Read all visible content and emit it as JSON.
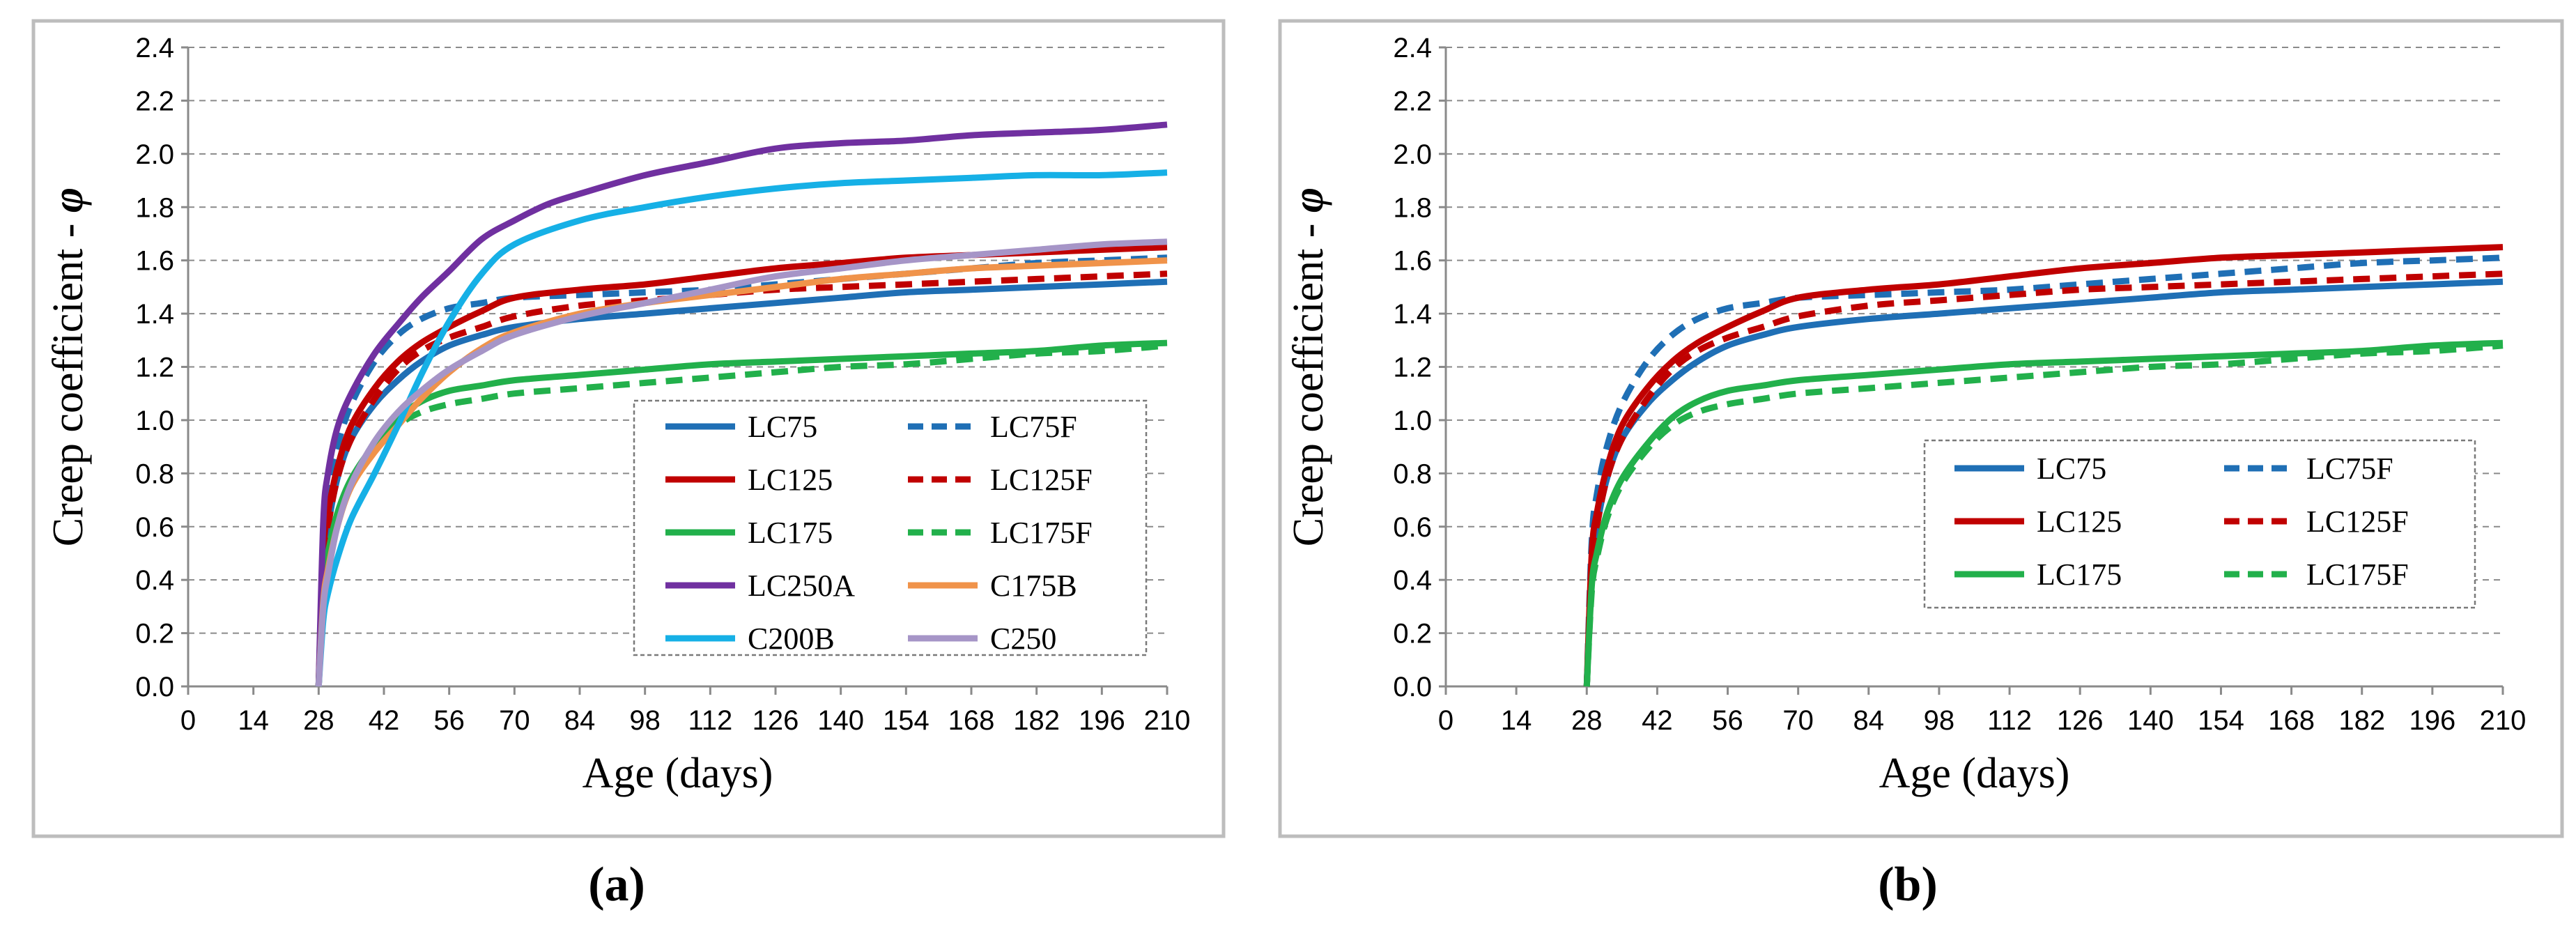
{
  "chart_data": [
    {
      "type": "line",
      "panel_label": "(a)",
      "title": "",
      "xlabel": "Age (days)",
      "ylabel": "Creep coefficient - ",
      "ylabel_symbol": "φ",
      "xlim": [
        0,
        210
      ],
      "ylim": [
        0,
        2.4
      ],
      "xticks": [
        "0",
        "14",
        "28",
        "42",
        "56",
        "70",
        "84",
        "98",
        "112",
        "126",
        "140",
        "154",
        "168",
        "182",
        "196",
        "210"
      ],
      "yticks": [
        "0.0",
        "0.2",
        "0.4",
        "0.6",
        "0.8",
        "1.0",
        "1.2",
        "1.4",
        "1.6",
        "1.8",
        "2.0",
        "2.2",
        "2.4"
      ],
      "grid": true,
      "legend_position": "bottom-right",
      "series": [
        {
          "name": "LC75",
          "color": "#1f6fb5",
          "dash": "solid",
          "x": [
            28,
            29,
            30,
            32,
            35,
            40,
            45,
            50,
            56,
            63,
            70,
            84,
            98,
            112,
            126,
            140,
            154,
            168,
            182,
            196,
            210
          ],
          "y": [
            0,
            0.45,
            0.6,
            0.78,
            0.93,
            1.06,
            1.15,
            1.22,
            1.28,
            1.32,
            1.35,
            1.38,
            1.4,
            1.42,
            1.44,
            1.46,
            1.48,
            1.49,
            1.5,
            1.51,
            1.52
          ]
        },
        {
          "name": "LC75F",
          "color": "#1f6fb5",
          "dash": "dashed",
          "x": [
            28,
            29,
            30,
            32,
            35,
            40,
            45,
            50,
            56,
            63,
            70,
            84,
            98,
            112,
            126,
            140,
            154,
            168,
            182,
            196,
            210
          ],
          "y": [
            0,
            0.55,
            0.72,
            0.9,
            1.06,
            1.22,
            1.32,
            1.38,
            1.42,
            1.44,
            1.46,
            1.47,
            1.48,
            1.49,
            1.51,
            1.53,
            1.55,
            1.57,
            1.59,
            1.6,
            1.61
          ]
        },
        {
          "name": "LC125",
          "color": "#c00000",
          "dash": "solid",
          "x": [
            28,
            29,
            30,
            32,
            35,
            40,
            45,
            50,
            56,
            63,
            70,
            84,
            98,
            112,
            126,
            140,
            154,
            168,
            182,
            196,
            210
          ],
          "y": [
            0,
            0.5,
            0.65,
            0.82,
            0.98,
            1.12,
            1.22,
            1.29,
            1.35,
            1.41,
            1.46,
            1.49,
            1.51,
            1.54,
            1.57,
            1.59,
            1.61,
            1.62,
            1.63,
            1.64,
            1.65
          ]
        },
        {
          "name": "LC125F",
          "color": "#c00000",
          "dash": "dashed",
          "x": [
            28,
            29,
            30,
            32,
            35,
            40,
            45,
            50,
            56,
            63,
            70,
            84,
            98,
            112,
            126,
            140,
            154,
            168,
            182,
            196,
            210
          ],
          "y": [
            0,
            0.45,
            0.6,
            0.78,
            0.93,
            1.08,
            1.19,
            1.26,
            1.31,
            1.35,
            1.39,
            1.43,
            1.45,
            1.47,
            1.49,
            1.5,
            1.51,
            1.52,
            1.53,
            1.54,
            1.55
          ]
        },
        {
          "name": "LC175",
          "color": "#22b04b",
          "dash": "solid",
          "x": [
            28,
            29,
            30,
            32,
            35,
            40,
            45,
            50,
            56,
            63,
            70,
            84,
            98,
            112,
            126,
            140,
            154,
            168,
            182,
            196,
            210
          ],
          "y": [
            0,
            0.38,
            0.5,
            0.65,
            0.78,
            0.91,
            1.01,
            1.07,
            1.11,
            1.13,
            1.15,
            1.17,
            1.19,
            1.21,
            1.22,
            1.23,
            1.24,
            1.25,
            1.26,
            1.28,
            1.29
          ]
        },
        {
          "name": "LC175F",
          "color": "#22b04b",
          "dash": "dashed",
          "x": [
            28,
            29,
            30,
            32,
            35,
            40,
            45,
            50,
            56,
            63,
            70,
            84,
            98,
            112,
            126,
            140,
            154,
            168,
            182,
            196,
            210
          ],
          "y": [
            0,
            0.36,
            0.48,
            0.63,
            0.76,
            0.89,
            0.98,
            1.03,
            1.06,
            1.08,
            1.1,
            1.12,
            1.14,
            1.16,
            1.18,
            1.2,
            1.21,
            1.23,
            1.25,
            1.26,
            1.28
          ]
        },
        {
          "name": "LC250A",
          "color": "#7030a0",
          "dash": "solid",
          "x": [
            28,
            29,
            30,
            32,
            35,
            40,
            45,
            50,
            56,
            63,
            70,
            77,
            84,
            98,
            112,
            126,
            140,
            154,
            168,
            182,
            196,
            210
          ],
          "y": [
            0,
            0.62,
            0.8,
            0.97,
            1.1,
            1.25,
            1.36,
            1.46,
            1.56,
            1.68,
            1.75,
            1.81,
            1.85,
            1.92,
            1.97,
            2.02,
            2.04,
            2.05,
            2.07,
            2.08,
            2.09,
            2.11
          ]
        },
        {
          "name": "C175B",
          "color": "#f0934a",
          "dash": "solid",
          "x": [
            28,
            29,
            30,
            32,
            35,
            40,
            45,
            50,
            56,
            63,
            70,
            84,
            98,
            112,
            126,
            140,
            154,
            168,
            182,
            196,
            210
          ],
          "y": [
            0,
            0.32,
            0.44,
            0.6,
            0.75,
            0.88,
            0.98,
            1.08,
            1.18,
            1.27,
            1.33,
            1.4,
            1.44,
            1.47,
            1.5,
            1.53,
            1.55,
            1.57,
            1.58,
            1.59,
            1.6
          ]
        },
        {
          "name": "C200B",
          "color": "#16b0e6",
          "dash": "solid",
          "x": [
            28,
            29,
            30,
            32,
            35,
            40,
            45,
            50,
            56,
            63,
            70,
            84,
            98,
            112,
            126,
            140,
            154,
            168,
            182,
            196,
            210
          ],
          "y": [
            0,
            0.25,
            0.35,
            0.48,
            0.63,
            0.8,
            0.98,
            1.17,
            1.37,
            1.55,
            1.66,
            1.75,
            1.8,
            1.84,
            1.87,
            1.89,
            1.9,
            1.91,
            1.92,
            1.92,
            1.93
          ]
        },
        {
          "name": "C250",
          "color": "#a695c7",
          "dash": "solid",
          "x": [
            28,
            29,
            30,
            32,
            35,
            40,
            45,
            50,
            56,
            63,
            70,
            84,
            98,
            112,
            126,
            140,
            154,
            168,
            182,
            196,
            210
          ],
          "y": [
            0,
            0.3,
            0.42,
            0.6,
            0.76,
            0.92,
            1.03,
            1.11,
            1.19,
            1.26,
            1.32,
            1.39,
            1.44,
            1.49,
            1.54,
            1.57,
            1.6,
            1.62,
            1.64,
            1.66,
            1.67
          ]
        }
      ],
      "legend_order": [
        "LC75",
        "LC75F",
        "LC125",
        "LC125F",
        "LC175",
        "LC175F",
        "LC250A",
        "C175B",
        "C200B",
        "C250"
      ]
    },
    {
      "type": "line",
      "panel_label": "(b)",
      "title": "",
      "xlabel": "Age (days)",
      "ylabel": "Creep coefficient - ",
      "ylabel_symbol": "φ",
      "xlim": [
        0,
        210
      ],
      "ylim": [
        0,
        2.4
      ],
      "xticks": [
        "0",
        "14",
        "28",
        "42",
        "56",
        "70",
        "84",
        "98",
        "112",
        "126",
        "140",
        "154",
        "168",
        "182",
        "196",
        "210"
      ],
      "yticks": [
        "0.0",
        "0.2",
        "0.4",
        "0.6",
        "0.8",
        "1.0",
        "1.2",
        "1.4",
        "1.6",
        "1.8",
        "2.0",
        "2.2",
        "2.4"
      ],
      "grid": true,
      "legend_position": "bottom-right",
      "series": [
        {
          "name": "LC75",
          "color": "#1f6fb5",
          "dash": "solid",
          "x": [
            28,
            29,
            30,
            32,
            35,
            40,
            45,
            50,
            56,
            63,
            70,
            84,
            98,
            112,
            126,
            140,
            154,
            168,
            182,
            196,
            210
          ],
          "y": [
            0,
            0.45,
            0.6,
            0.78,
            0.93,
            1.06,
            1.15,
            1.22,
            1.28,
            1.32,
            1.35,
            1.38,
            1.4,
            1.42,
            1.44,
            1.46,
            1.48,
            1.49,
            1.5,
            1.51,
            1.52
          ]
        },
        {
          "name": "LC75F",
          "color": "#1f6fb5",
          "dash": "dashed",
          "x": [
            28,
            29,
            30,
            32,
            35,
            40,
            45,
            50,
            56,
            63,
            70,
            84,
            98,
            112,
            126,
            140,
            154,
            168,
            182,
            196,
            210
          ],
          "y": [
            0,
            0.55,
            0.72,
            0.9,
            1.06,
            1.22,
            1.32,
            1.38,
            1.42,
            1.44,
            1.46,
            1.47,
            1.48,
            1.49,
            1.51,
            1.53,
            1.55,
            1.57,
            1.59,
            1.6,
            1.61
          ]
        },
        {
          "name": "LC125",
          "color": "#c00000",
          "dash": "solid",
          "x": [
            28,
            29,
            30,
            32,
            35,
            40,
            45,
            50,
            56,
            63,
            70,
            84,
            98,
            112,
            126,
            140,
            154,
            168,
            182,
            196,
            210
          ],
          "y": [
            0,
            0.5,
            0.65,
            0.82,
            0.98,
            1.12,
            1.22,
            1.29,
            1.35,
            1.41,
            1.46,
            1.49,
            1.51,
            1.54,
            1.57,
            1.59,
            1.61,
            1.62,
            1.63,
            1.64,
            1.65
          ]
        },
        {
          "name": "LC125F",
          "color": "#c00000",
          "dash": "dashed",
          "x": [
            28,
            29,
            30,
            32,
            35,
            40,
            45,
            50,
            56,
            63,
            70,
            84,
            98,
            112,
            126,
            140,
            154,
            168,
            182,
            196,
            210
          ],
          "y": [
            0,
            0.45,
            0.6,
            0.78,
            0.93,
            1.08,
            1.19,
            1.26,
            1.31,
            1.35,
            1.39,
            1.43,
            1.45,
            1.47,
            1.49,
            1.5,
            1.51,
            1.52,
            1.53,
            1.54,
            1.55
          ]
        },
        {
          "name": "LC175",
          "color": "#22b04b",
          "dash": "solid",
          "x": [
            28,
            29,
            30,
            32,
            35,
            40,
            45,
            50,
            56,
            63,
            70,
            84,
            98,
            112,
            126,
            140,
            154,
            168,
            182,
            196,
            210
          ],
          "y": [
            0,
            0.38,
            0.5,
            0.65,
            0.78,
            0.91,
            1.01,
            1.07,
            1.11,
            1.13,
            1.15,
            1.17,
            1.19,
            1.21,
            1.22,
            1.23,
            1.24,
            1.25,
            1.26,
            1.28,
            1.29
          ]
        },
        {
          "name": "LC175F",
          "color": "#22b04b",
          "dash": "dashed",
          "x": [
            28,
            29,
            30,
            32,
            35,
            40,
            45,
            50,
            56,
            63,
            70,
            84,
            98,
            112,
            126,
            140,
            154,
            168,
            182,
            196,
            210
          ],
          "y": [
            0,
            0.36,
            0.48,
            0.63,
            0.76,
            0.89,
            0.98,
            1.03,
            1.06,
            1.08,
            1.1,
            1.12,
            1.14,
            1.16,
            1.18,
            1.2,
            1.21,
            1.23,
            1.25,
            1.26,
            1.28
          ]
        }
      ],
      "legend_order": [
        "LC75",
        "LC75F",
        "LC125",
        "LC125F",
        "LC175",
        "LC175F"
      ]
    }
  ]
}
